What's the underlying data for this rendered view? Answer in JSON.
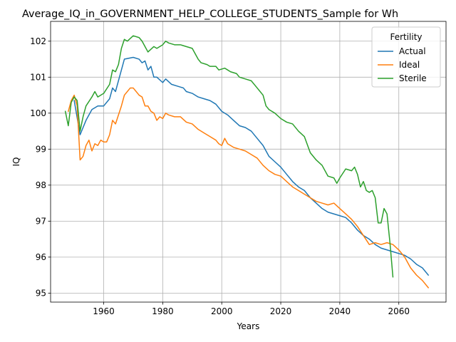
{
  "chart_data": {
    "type": "line",
    "title": "Average_IQ_in_GOVERNMENT_HELP_COLLEGE_STUDENTS_Sample for Wh",
    "xlabel": "Years",
    "ylabel": "IQ",
    "xlim": [
      1942,
      2076
    ],
    "ylim": [
      94.75,
      102.55
    ],
    "xticks": [
      1960,
      1980,
      2000,
      2020,
      2040,
      2060
    ],
    "yticks": [
      95,
      96,
      97,
      98,
      99,
      100,
      101,
      102
    ],
    "grid": true,
    "legend": {
      "title": "Fertility",
      "placement": "top-right"
    },
    "series": [
      {
        "name": "Actual",
        "color": "#1f77b4",
        "points": [
          [
            1950,
            100.35
          ],
          [
            1952,
            99.4
          ],
          [
            1954,
            99.8
          ],
          [
            1956,
            100.1
          ],
          [
            1958,
            100.2
          ],
          [
            1960,
            100.2
          ],
          [
            1962,
            100.4
          ],
          [
            1963,
            100.7
          ],
          [
            1964,
            100.6
          ],
          [
            1966,
            101.2
          ],
          [
            1967,
            101.5
          ],
          [
            1970,
            101.55
          ],
          [
            1972,
            101.5
          ],
          [
            1973,
            101.4
          ],
          [
            1974,
            101.45
          ],
          [
            1975,
            101.2
          ],
          [
            1976,
            101.3
          ],
          [
            1977,
            101.0
          ],
          [
            1978,
            101.0
          ],
          [
            1980,
            100.85
          ],
          [
            1981,
            100.95
          ],
          [
            1983,
            100.8
          ],
          [
            1985,
            100.75
          ],
          [
            1987,
            100.7
          ],
          [
            1988,
            100.6
          ],
          [
            1990,
            100.55
          ],
          [
            1992,
            100.45
          ],
          [
            1994,
            100.4
          ],
          [
            1996,
            100.35
          ],
          [
            1998,
            100.25
          ],
          [
            2000,
            100.05
          ],
          [
            2002,
            99.95
          ],
          [
            2004,
            99.8
          ],
          [
            2006,
            99.65
          ],
          [
            2008,
            99.6
          ],
          [
            2010,
            99.5
          ],
          [
            2012,
            99.3
          ],
          [
            2014,
            99.1
          ],
          [
            2016,
            98.8
          ],
          [
            2018,
            98.65
          ],
          [
            2020,
            98.5
          ],
          [
            2022,
            98.3
          ],
          [
            2024,
            98.1
          ],
          [
            2026,
            97.95
          ],
          [
            2028,
            97.85
          ],
          [
            2030,
            97.65
          ],
          [
            2032,
            97.5
          ],
          [
            2034,
            97.35
          ],
          [
            2036,
            97.25
          ],
          [
            2038,
            97.2
          ],
          [
            2040,
            97.15
          ],
          [
            2042,
            97.1
          ],
          [
            2044,
            96.95
          ],
          [
            2046,
            96.75
          ],
          [
            2048,
            96.6
          ],
          [
            2050,
            96.5
          ],
          [
            2052,
            96.35
          ],
          [
            2054,
            96.25
          ],
          [
            2056,
            96.2
          ],
          [
            2058,
            96.15
          ],
          [
            2060,
            96.1
          ],
          [
            2062,
            96.05
          ],
          [
            2064,
            95.95
          ],
          [
            2066,
            95.8
          ],
          [
            2068,
            95.7
          ],
          [
            2070,
            95.5
          ]
        ]
      },
      {
        "name": "Ideal",
        "color": "#ff7f0e",
        "points": [
          [
            1948,
            100.05
          ],
          [
            1949,
            100.35
          ],
          [
            1950,
            100.5
          ],
          [
            1951,
            100.2
          ],
          [
            1952,
            98.7
          ],
          [
            1953,
            98.8
          ],
          [
            1954,
            99.1
          ],
          [
            1955,
            99.25
          ],
          [
            1956,
            98.95
          ],
          [
            1957,
            99.15
          ],
          [
            1958,
            99.1
          ],
          [
            1959,
            99.25
          ],
          [
            1960,
            99.2
          ],
          [
            1961,
            99.2
          ],
          [
            1962,
            99.4
          ],
          [
            1963,
            99.8
          ],
          [
            1964,
            99.7
          ],
          [
            1966,
            100.2
          ],
          [
            1967,
            100.5
          ],
          [
            1969,
            100.7
          ],
          [
            1970,
            100.7
          ],
          [
            1972,
            100.5
          ],
          [
            1973,
            100.45
          ],
          [
            1974,
            100.2
          ],
          [
            1975,
            100.2
          ],
          [
            1976,
            100.05
          ],
          [
            1977,
            100.0
          ],
          [
            1978,
            99.8
          ],
          [
            1979,
            99.9
          ],
          [
            1980,
            99.85
          ],
          [
            1981,
            100.0
          ],
          [
            1982,
            99.95
          ],
          [
            1984,
            99.9
          ],
          [
            1986,
            99.9
          ],
          [
            1988,
            99.75
          ],
          [
            1990,
            99.7
          ],
          [
            1992,
            99.55
          ],
          [
            1994,
            99.45
          ],
          [
            1996,
            99.35
          ],
          [
            1998,
            99.25
          ],
          [
            1999,
            99.15
          ],
          [
            2000,
            99.1
          ],
          [
            2001,
            99.3
          ],
          [
            2002,
            99.15
          ],
          [
            2004,
            99.05
          ],
          [
            2006,
            99.0
          ],
          [
            2008,
            98.95
          ],
          [
            2010,
            98.85
          ],
          [
            2012,
            98.75
          ],
          [
            2014,
            98.55
          ],
          [
            2016,
            98.4
          ],
          [
            2018,
            98.3
          ],
          [
            2020,
            98.25
          ],
          [
            2022,
            98.1
          ],
          [
            2024,
            97.95
          ],
          [
            2026,
            97.85
          ],
          [
            2028,
            97.75
          ],
          [
            2030,
            97.65
          ],
          [
            2032,
            97.55
          ],
          [
            2034,
            97.5
          ],
          [
            2036,
            97.45
          ],
          [
            2038,
            97.5
          ],
          [
            2040,
            97.35
          ],
          [
            2042,
            97.2
          ],
          [
            2044,
            97.05
          ],
          [
            2046,
            96.85
          ],
          [
            2048,
            96.6
          ],
          [
            2050,
            96.35
          ],
          [
            2052,
            96.4
          ],
          [
            2054,
            96.35
          ],
          [
            2056,
            96.4
          ],
          [
            2058,
            96.35
          ],
          [
            2060,
            96.2
          ],
          [
            2062,
            96.0
          ],
          [
            2064,
            95.7
          ],
          [
            2066,
            95.5
          ],
          [
            2068,
            95.35
          ],
          [
            2070,
            95.15
          ]
        ]
      },
      {
        "name": "Sterile",
        "color": "#2ca02c",
        "points": [
          [
            1947,
            100.05
          ],
          [
            1948,
            99.65
          ],
          [
            1949,
            100.3
          ],
          [
            1950,
            100.45
          ],
          [
            1951,
            100.35
          ],
          [
            1952,
            99.5
          ],
          [
            1953,
            99.9
          ],
          [
            1954,
            100.2
          ],
          [
            1956,
            100.45
          ],
          [
            1957,
            100.6
          ],
          [
            1958,
            100.45
          ],
          [
            1960,
            100.55
          ],
          [
            1962,
            100.8
          ],
          [
            1963,
            101.2
          ],
          [
            1964,
            101.15
          ],
          [
            1965,
            101.35
          ],
          [
            1966,
            101.8
          ],
          [
            1967,
            102.05
          ],
          [
            1968,
            102.0
          ],
          [
            1970,
            102.15
          ],
          [
            1972,
            102.1
          ],
          [
            1973,
            102.0
          ],
          [
            1974,
            101.85
          ],
          [
            1975,
            101.7
          ],
          [
            1977,
            101.85
          ],
          [
            1978,
            101.8
          ],
          [
            1980,
            101.9
          ],
          [
            1981,
            102.0
          ],
          [
            1982,
            101.95
          ],
          [
            1984,
            101.9
          ],
          [
            1986,
            101.9
          ],
          [
            1988,
            101.85
          ],
          [
            1990,
            101.8
          ],
          [
            1992,
            101.5
          ],
          [
            1993,
            101.4
          ],
          [
            1995,
            101.35
          ],
          [
            1996,
            101.3
          ],
          [
            1998,
            101.3
          ],
          [
            1999,
            101.2
          ],
          [
            2001,
            101.25
          ],
          [
            2002,
            101.2
          ],
          [
            2003,
            101.15
          ],
          [
            2005,
            101.1
          ],
          [
            2006,
            101.0
          ],
          [
            2008,
            100.95
          ],
          [
            2010,
            100.9
          ],
          [
            2012,
            100.7
          ],
          [
            2014,
            100.5
          ],
          [
            2015,
            100.2
          ],
          [
            2016,
            100.1
          ],
          [
            2018,
            100.0
          ],
          [
            2020,
            99.85
          ],
          [
            2022,
            99.75
          ],
          [
            2024,
            99.7
          ],
          [
            2026,
            99.5
          ],
          [
            2028,
            99.35
          ],
          [
            2030,
            98.9
          ],
          [
            2032,
            98.7
          ],
          [
            2034,
            98.55
          ],
          [
            2036,
            98.25
          ],
          [
            2038,
            98.2
          ],
          [
            2039,
            98.05
          ],
          [
            2040,
            98.2
          ],
          [
            2042,
            98.45
          ],
          [
            2044,
            98.4
          ],
          [
            2045,
            98.5
          ],
          [
            2046,
            98.3
          ],
          [
            2047,
            97.95
          ],
          [
            2048,
            98.1
          ],
          [
            2049,
            97.85
          ],
          [
            2050,
            97.8
          ],
          [
            2051,
            97.85
          ],
          [
            2052,
            97.65
          ],
          [
            2053,
            96.95
          ],
          [
            2054,
            96.95
          ],
          [
            2055,
            97.35
          ],
          [
            2056,
            97.2
          ],
          [
            2057,
            96.4
          ],
          [
            2058,
            95.45
          ]
        ]
      }
    ]
  }
}
